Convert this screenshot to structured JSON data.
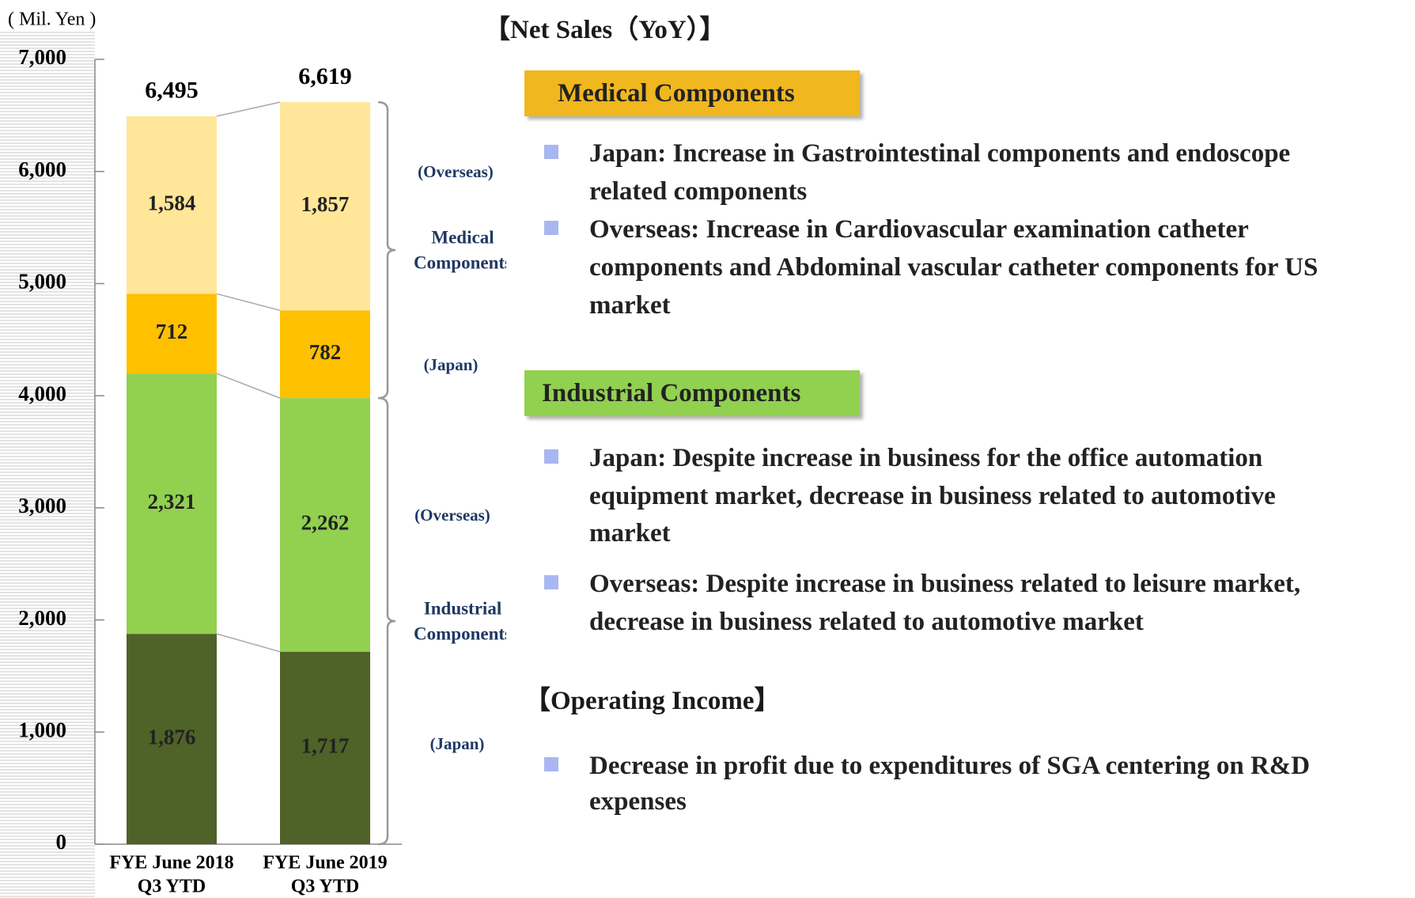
{
  "chart_data": {
    "type": "stacked-bar",
    "unit_label": "( Mil. Yen )",
    "categories": [
      [
        "FYE June 2018",
        "Q3 YTD"
      ],
      [
        "FYE June 2019",
        "Q3 YTD"
      ]
    ],
    "series": [
      {
        "name": "(Japan)",
        "color": "#4f6228",
        "values": [
          1876,
          1717
        ]
      },
      {
        "name": "(Overseas)",
        "color": "#92d050",
        "values": [
          2321,
          2262
        ]
      },
      {
        "name": "(Japan)",
        "color": "#ffc000",
        "values": [
          712,
          782
        ]
      },
      {
        "name": "(Overseas)",
        "color": "#ffe699",
        "values": [
          1584,
          1857
        ]
      }
    ],
    "totals": [
      {
        "value": 6495,
        "label": "6,495"
      },
      {
        "value": 6619,
        "label": "6,619"
      }
    ],
    "value_labels": [
      [
        "1,876",
        "1,717"
      ],
      [
        "2,321",
        "2,262"
      ],
      [
        "712",
        "782"
      ],
      [
        "1,584",
        "1,857"
      ]
    ],
    "groups": [
      {
        "label": [
          "Industrial",
          "Components"
        ]
      },
      {
        "label": [
          "Medical",
          "Components"
        ]
      }
    ],
    "ylim": [
      0,
      7000
    ],
    "yticks": [
      0,
      {
        "value": 1000,
        "label": "1,000"
      },
      {
        "value": 2000,
        "label": "2,000"
      },
      {
        "value": 3000,
        "label": "3,000"
      },
      {
        "value": 4000,
        "label": "4,000"
      },
      {
        "value": 5000,
        "label": "5,000"
      },
      {
        "value": 6000,
        "label": "6,000"
      },
      {
        "value": 7000,
        "label": "7,000"
      }
    ]
  },
  "panel": {
    "title": "【Net Sales（YoY）】",
    "sections": [
      {
        "heading": "Medical Components",
        "bullets": [
          [
            "Japan: Increase in Gastrointestinal components and endoscope",
            "related components"
          ],
          [
            " Overseas: Increase in Cardiovascular examination catheter",
            "components and Abdominal vascular catheter components for US",
            "market"
          ]
        ]
      },
      {
        "heading": "Industrial  Components",
        "bullets": [
          [
            "Japan: Despite increase in business for the office automation",
            "equipment market, decrease in business related to automotive",
            "market"
          ],
          [
            "Overseas: Despite increase in business related to leisure market,",
            "decrease in business related to automotive market"
          ]
        ]
      },
      {
        "heading": "【Operating Income】",
        "bullets": [
          [
            "Decrease in profit due to expenditures of SGA centering on R&D",
            "expenses"
          ]
        ]
      }
    ]
  }
}
